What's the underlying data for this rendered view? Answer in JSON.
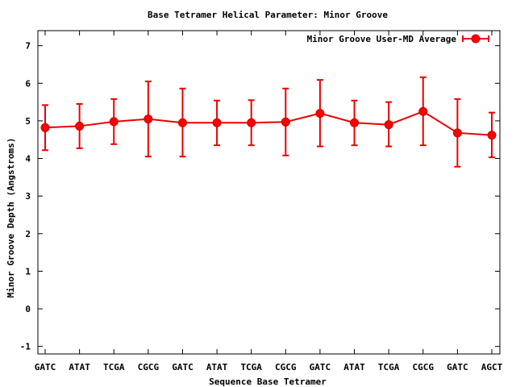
{
  "chart_data": {
    "type": "line",
    "title": "Base Tetramer Helical Parameter: Minor Groove",
    "xlabel": "Sequence Base Tetramer",
    "ylabel": "Minor Groove Depth (Angstroms)",
    "ylim": [
      -1.2,
      7.4
    ],
    "yticks": [
      -1,
      0,
      1,
      2,
      3,
      4,
      5,
      6,
      7
    ],
    "categories": [
      "GATC",
      "ATAT",
      "TCGA",
      "CGCG",
      "GATC",
      "ATAT",
      "TCGA",
      "CGCG",
      "GATC",
      "ATAT",
      "TCGA",
      "CGCG",
      "GATC",
      "AGCT"
    ],
    "series": [
      {
        "name": "Minor Groove User-MD Average",
        "color": "#ff0000",
        "values": [
          4.82,
          4.86,
          4.98,
          5.05,
          4.95,
          4.95,
          4.95,
          4.97,
          5.2,
          4.95,
          4.9,
          5.25,
          4.68,
          4.62
        ],
        "err_low": [
          4.22,
          4.27,
          4.38,
          4.05,
          4.05,
          4.35,
          4.35,
          4.08,
          4.32,
          4.35,
          4.32,
          4.35,
          3.78,
          4.03
        ],
        "err_high": [
          5.42,
          5.45,
          5.58,
          6.05,
          5.86,
          5.54,
          5.55,
          5.86,
          6.09,
          5.54,
          5.5,
          6.16,
          5.58,
          5.22
        ]
      }
    ],
    "legend_position": "top-right",
    "grid": false
  }
}
